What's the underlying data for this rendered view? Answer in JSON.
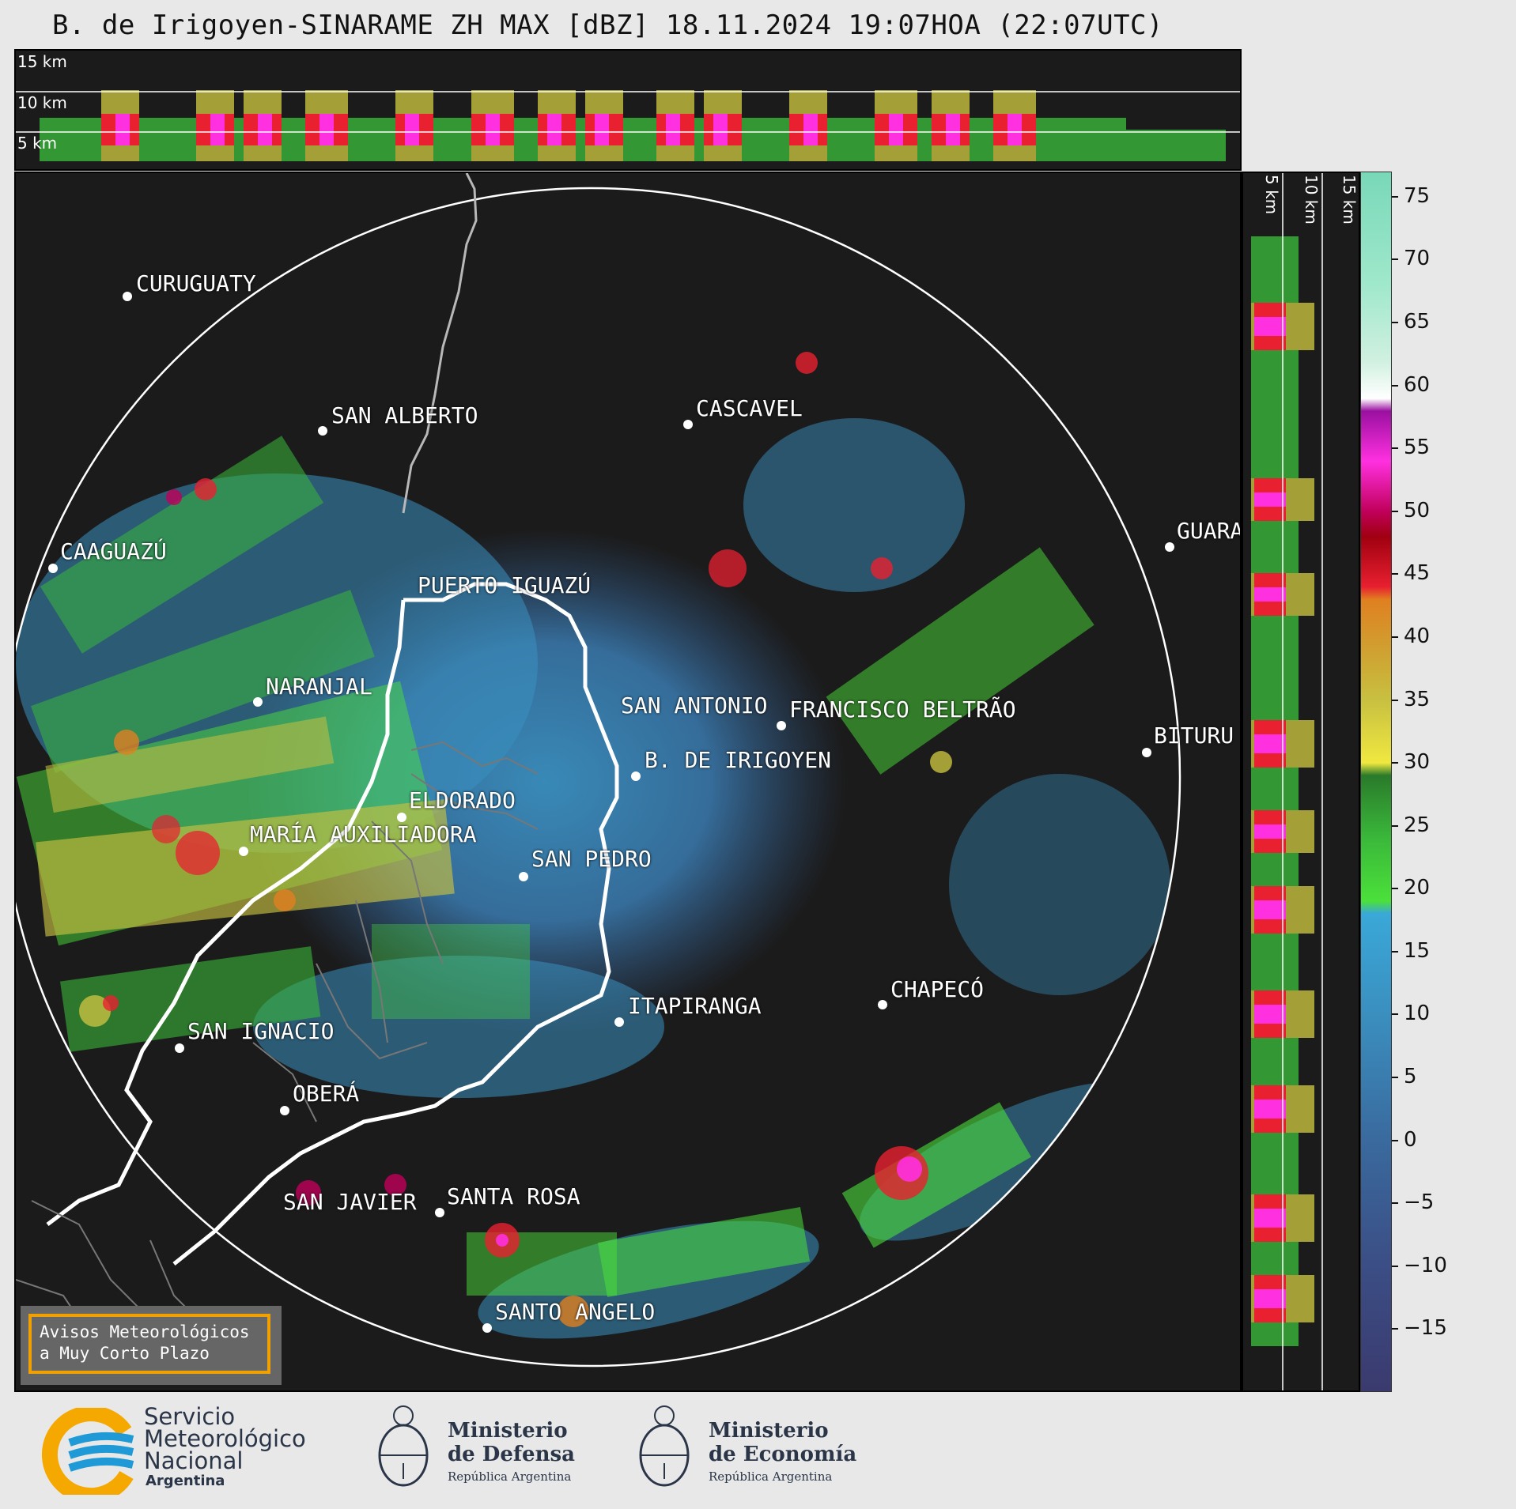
{
  "title": "B. de Irigoyen-SINARAME ZH MAX [dBZ] 18.11.2024 19:07HOA (22:07UTC)",
  "altitude_labels": [
    "15 km",
    "10 km",
    "5 km"
  ],
  "cities": [
    {
      "name": "CURUGUATY"
    },
    {
      "name": "SAN ALBERTO"
    },
    {
      "name": "CASCAVEL"
    },
    {
      "name": "CAAGUAZÚ"
    },
    {
      "name": "GUARA"
    },
    {
      "name": "PUERTO IGUAZÚ"
    },
    {
      "name": "NARANJAL"
    },
    {
      "name": "SAN ANTONIO"
    },
    {
      "name": "FRANCISCO BELTRÃO"
    },
    {
      "name": "B. DE IRIGOYEN"
    },
    {
      "name": "BITURU"
    },
    {
      "name": "ELDORADO"
    },
    {
      "name": "MARÍA AUXILIADORA"
    },
    {
      "name": "SAN PEDRO"
    },
    {
      "name": "CHAPECÓ"
    },
    {
      "name": "ITAPIRANGA"
    },
    {
      "name": "SAN IGNACIO"
    },
    {
      "name": "OBERÁ"
    },
    {
      "name": "SAN JAVIER"
    },
    {
      "name": "SANTA ROSA"
    },
    {
      "name": "SANTO ANGELO"
    }
  ],
  "colorbar": {
    "unit": "dBZ",
    "ticks": [
      "75",
      "70",
      "65",
      "60",
      "55",
      "50",
      "45",
      "40",
      "35",
      "30",
      "25",
      "20",
      "15",
      "10",
      "5",
      "0",
      "−5",
      "−10",
      "−15"
    ],
    "range": [
      -20,
      77
    ],
    "stops": [
      {
        "v": -20,
        "c": "#3b3a6e"
      },
      {
        "v": -10,
        "c": "#3b4e85"
      },
      {
        "v": 0,
        "c": "#3a6a9e"
      },
      {
        "v": 10,
        "c": "#3a8fbf"
      },
      {
        "v": 18,
        "c": "#3aa8d8"
      },
      {
        "v": 19,
        "c": "#4be03a"
      },
      {
        "v": 24,
        "c": "#3ab83a"
      },
      {
        "v": 29,
        "c": "#2a7a2a"
      },
      {
        "v": 30,
        "c": "#f0e840"
      },
      {
        "v": 35,
        "c": "#c8c040"
      },
      {
        "v": 39,
        "c": "#d0a030"
      },
      {
        "v": 43,
        "c": "#e08020"
      },
      {
        "v": 44,
        "c": "#e82030"
      },
      {
        "v": 48,
        "c": "#a00010"
      },
      {
        "v": 50,
        "c": "#c0005a"
      },
      {
        "v": 54,
        "c": "#ff30e0"
      },
      {
        "v": 58,
        "c": "#9a10a0"
      },
      {
        "v": 59,
        "c": "#ffffff"
      },
      {
        "v": 62,
        "c": "#d0f0e0"
      },
      {
        "v": 68,
        "c": "#a0e8cc"
      },
      {
        "v": 77,
        "c": "#78d8b8"
      }
    ]
  },
  "alert": {
    "line1": "Avisos Meteorológicos",
    "line2": "a Muy Corto Plazo"
  },
  "footer": {
    "smn": {
      "line1": "Servicio",
      "line2": "Meteorológico",
      "line3": "Nacional",
      "line4": "Argentina"
    },
    "defensa": {
      "line1": "Ministerio",
      "line2": "de Defensa",
      "line3": "República Argentina"
    },
    "economia": {
      "line1": "Ministerio",
      "line2": "de Economía",
      "line3": "República Argentina"
    }
  }
}
